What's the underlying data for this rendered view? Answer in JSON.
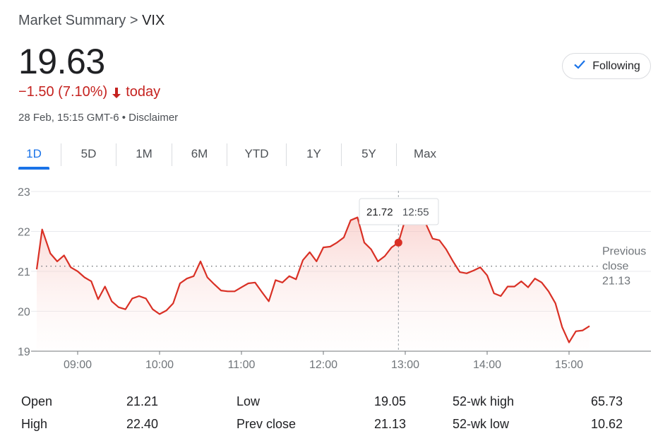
{
  "breadcrumb": {
    "parent": "Market Summary",
    "separator": ">",
    "ticker": "VIX"
  },
  "quote": {
    "price": "19.63",
    "change": "−1.50 (7.10%)",
    "direction_icon": "arrow-down-icon",
    "period": "today",
    "timestamp": "28 Feb, 15:15 GMT-6 • Disclaimer"
  },
  "follow_button": {
    "label": "Following",
    "icon": "check-icon"
  },
  "tabs": [
    {
      "label": "1D",
      "active": true
    },
    {
      "label": "5D",
      "active": false
    },
    {
      "label": "1M",
      "active": false
    },
    {
      "label": "6M",
      "active": false
    },
    {
      "label": "YTD",
      "active": false
    },
    {
      "label": "1Y",
      "active": false
    },
    {
      "label": "5Y",
      "active": false
    },
    {
      "label": "Max",
      "active": false
    }
  ],
  "colors": {
    "line": "#d93025",
    "fill": "#fce8e6",
    "accent": "#1a73e8",
    "negative": "#c5221f",
    "grid": "#e8eaed",
    "axis": "#70757a"
  },
  "chart_data": {
    "type": "line",
    "x_unit": "time",
    "xlim": [
      "08:30",
      "16:00"
    ],
    "ylim": [
      19,
      23
    ],
    "y_ticks": [
      "19",
      "20",
      "21",
      "22",
      "23"
    ],
    "x_ticks": [
      "09:00",
      "10:00",
      "11:00",
      "12:00",
      "13:00",
      "14:00",
      "15:00"
    ],
    "grid": true,
    "reference_line": {
      "label_line1": "Previous",
      "label_line2": "close",
      "value": 21.13,
      "value_label": "21.13"
    },
    "tooltip": {
      "value": "21.72",
      "time": "12:55",
      "x": "12:55",
      "y": 21.72
    },
    "series": [
      {
        "points": [
          [
            "08:30",
            21.05
          ],
          [
            "08:34",
            22.05
          ],
          [
            "08:40",
            21.45
          ],
          [
            "08:45",
            21.25
          ],
          [
            "08:50",
            21.4
          ],
          [
            "08:55",
            21.1
          ],
          [
            "09:00",
            21.0
          ],
          [
            "09:05",
            20.85
          ],
          [
            "09:10",
            20.75
          ],
          [
            "09:15",
            20.3
          ],
          [
            "09:20",
            20.62
          ],
          [
            "09:25",
            20.25
          ],
          [
            "09:30",
            20.1
          ],
          [
            "09:35",
            20.05
          ],
          [
            "09:40",
            20.32
          ],
          [
            "09:45",
            20.38
          ],
          [
            "09:50",
            20.32
          ],
          [
            "09:55",
            20.05
          ],
          [
            "10:00",
            19.93
          ],
          [
            "10:05",
            20.02
          ],
          [
            "10:10",
            20.2
          ],
          [
            "10:15",
            20.7
          ],
          [
            "10:20",
            20.82
          ],
          [
            "10:25",
            20.88
          ],
          [
            "10:30",
            21.25
          ],
          [
            "10:35",
            20.85
          ],
          [
            "10:40",
            20.68
          ],
          [
            "10:45",
            20.52
          ],
          [
            "10:50",
            20.5
          ],
          [
            "10:55",
            20.5
          ],
          [
            "11:00",
            20.6
          ],
          [
            "11:05",
            20.7
          ],
          [
            "11:10",
            20.72
          ],
          [
            "11:15",
            20.48
          ],
          [
            "11:20",
            20.25
          ],
          [
            "11:25",
            20.78
          ],
          [
            "11:30",
            20.72
          ],
          [
            "11:35",
            20.88
          ],
          [
            "11:40",
            20.8
          ],
          [
            "11:45",
            21.28
          ],
          [
            "11:50",
            21.48
          ],
          [
            "11:55",
            21.25
          ],
          [
            "12:00",
            21.6
          ],
          [
            "12:05",
            21.62
          ],
          [
            "12:10",
            21.72
          ],
          [
            "12:15",
            21.85
          ],
          [
            "12:20",
            22.28
          ],
          [
            "12:25",
            22.35
          ],
          [
            "12:30",
            21.72
          ],
          [
            "12:35",
            21.55
          ],
          [
            "12:40",
            21.25
          ],
          [
            "12:45",
            21.38
          ],
          [
            "12:50",
            21.6
          ],
          [
            "12:55",
            21.72
          ],
          [
            "13:00",
            22.3
          ],
          [
            "13:05",
            22.35
          ],
          [
            "13:10",
            22.18
          ],
          [
            "13:15",
            22.2
          ],
          [
            "13:20",
            21.82
          ],
          [
            "13:25",
            21.78
          ],
          [
            "13:30",
            21.55
          ],
          [
            "13:35",
            21.25
          ],
          [
            "13:40",
            20.98
          ],
          [
            "13:45",
            20.95
          ],
          [
            "13:50",
            21.02
          ],
          [
            "13:55",
            21.1
          ],
          [
            "14:00",
            20.9
          ],
          [
            "14:05",
            20.45
          ],
          [
            "14:10",
            20.38
          ],
          [
            "14:15",
            20.62
          ],
          [
            "14:20",
            20.62
          ],
          [
            "14:25",
            20.75
          ],
          [
            "14:30",
            20.6
          ],
          [
            "14:35",
            20.82
          ],
          [
            "14:40",
            20.72
          ],
          [
            "14:45",
            20.5
          ],
          [
            "14:50",
            20.2
          ],
          [
            "14:55",
            19.6
          ],
          [
            "15:00",
            19.22
          ],
          [
            "15:05",
            19.5
          ],
          [
            "15:10",
            19.52
          ],
          [
            "15:15",
            19.63
          ]
        ]
      }
    ]
  },
  "stats": [
    {
      "label": "Open",
      "value": "21.21"
    },
    {
      "label": "High",
      "value": "22.40"
    },
    {
      "label": "Low",
      "value": "19.05"
    },
    {
      "label": "Prev close",
      "value": "21.13"
    },
    {
      "label": "52-wk high",
      "value": "65.73"
    },
    {
      "label": "52-wk low",
      "value": "10.62"
    }
  ]
}
